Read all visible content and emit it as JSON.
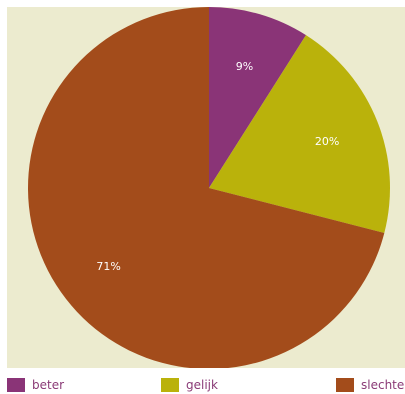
{
  "chart_data": {
    "type": "pie",
    "categories": [
      "beter",
      "gelijk",
      "slechter"
    ],
    "values": [
      9,
      20,
      71
    ],
    "labels": [
      "9%",
      "20%",
      "71%"
    ],
    "colors": [
      "#8a3477",
      "#bab20b",
      "#a34c1b"
    ],
    "label_color": "#ffffff",
    "background": "#ecebcf",
    "legend_placement": "bottom",
    "start_angle": "top",
    "direction": "clockwise"
  }
}
